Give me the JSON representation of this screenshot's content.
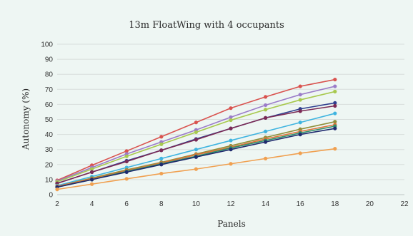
{
  "chart_data": {
    "type": "line",
    "title": "13m FloatWing with 4 occupants",
    "xlabel": "Panels",
    "ylabel": "Autonomy (%)",
    "xlim": [
      2,
      22
    ],
    "ylim": [
      0,
      100
    ],
    "xticks": [
      2,
      4,
      6,
      8,
      10,
      12,
      14,
      16,
      18,
      20,
      22
    ],
    "yticks": [
      0,
      10,
      20,
      30,
      40,
      50,
      60,
      70,
      80,
      90,
      100
    ],
    "grid": "horizontal",
    "x": [
      2,
      4,
      6,
      8,
      10,
      12,
      14,
      16,
      18
    ],
    "series": [
      {
        "color": "#d9534f",
        "values": [
          9.5,
          19.5,
          29,
          38.5,
          48,
          57.5,
          65,
          72,
          76.5
        ]
      },
      {
        "color": "#9b7cc9",
        "values": [
          9,
          18,
          27,
          35,
          43,
          51.5,
          59.5,
          66.5,
          72
        ]
      },
      {
        "color": "#a8c94f",
        "values": [
          8.5,
          17,
          25.5,
          33.5,
          41.5,
          49.5,
          56.5,
          63,
          68.5
        ]
      },
      {
        "color": "#2f3f8f",
        "values": [
          7.5,
          15,
          22.5,
          29.5,
          37,
          44,
          51,
          57,
          61
        ]
      },
      {
        "color": "#7b2a55",
        "values": [
          7.5,
          15,
          22,
          29.5,
          36.5,
          44,
          51,
          55.5,
          59
        ]
      },
      {
        "color": "#3fb4e0",
        "values": [
          6,
          12,
          18,
          24,
          30,
          36,
          42,
          48,
          54
        ]
      },
      {
        "color": "#8f8f3a",
        "values": [
          5.5,
          11,
          16.5,
          21.5,
          27,
          32.5,
          38,
          43.5,
          48.5
        ]
      },
      {
        "color": "#e0723a",
        "values": [
          5.5,
          10.5,
          16,
          21,
          26.5,
          31.5,
          37,
          42,
          46.5
        ]
      },
      {
        "color": "#2f8f6a",
        "values": [
          5,
          10,
          15.5,
          20.5,
          25.5,
          31,
          36,
          41,
          45.5
        ]
      },
      {
        "color": "#1f2a6e",
        "values": [
          5,
          10,
          15,
          20,
          25,
          30,
          35,
          40,
          44
        ]
      },
      {
        "color": "#f0a050",
        "values": [
          3.5,
          7,
          10.5,
          14,
          17,
          20.5,
          24,
          27.5,
          30.5
        ]
      }
    ]
  }
}
